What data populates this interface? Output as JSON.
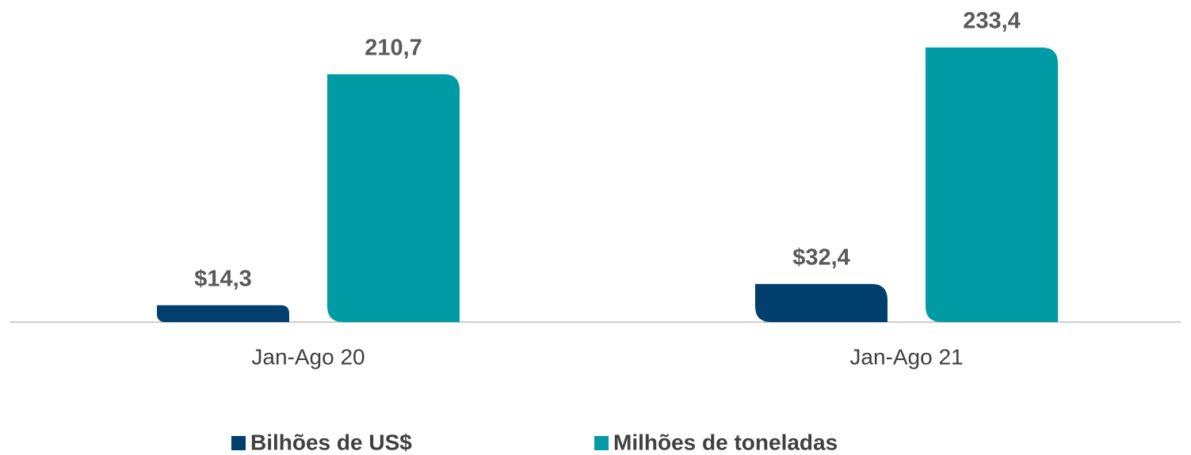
{
  "chart_data": {
    "type": "bar",
    "categories": [
      "Jan-Ago 20",
      "Jan-Ago 21"
    ],
    "series": [
      {
        "name": "Bilhões de US$",
        "color": "#003f6e",
        "values": [
          14.3,
          32.4
        ],
        "value_labels": [
          "$14,3",
          "$32,4"
        ]
      },
      {
        "name": "Milhões de toneladas",
        "color": "#009ba4",
        "values": [
          210.7,
          233.4
        ],
        "value_labels": [
          "210,7",
          "233,4"
        ]
      }
    ]
  }
}
